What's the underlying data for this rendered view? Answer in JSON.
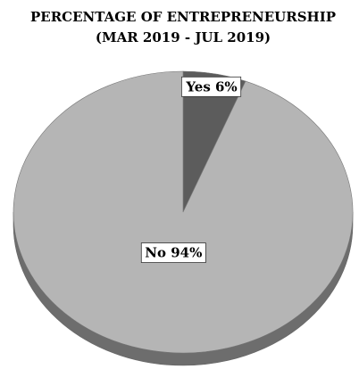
{
  "chart_data": {
    "type": "pie",
    "title": "PERCENTAGE OF ENTREPRENEURSHIP",
    "subtitle": "(MAR 2019 - JUL 2019)",
    "values": [
      6,
      94
    ],
    "value_labels": [
      "Yes 6%",
      "No 94%"
    ],
    "colors": [
      "#5c5c5c",
      "#b5b5b5"
    ]
  }
}
